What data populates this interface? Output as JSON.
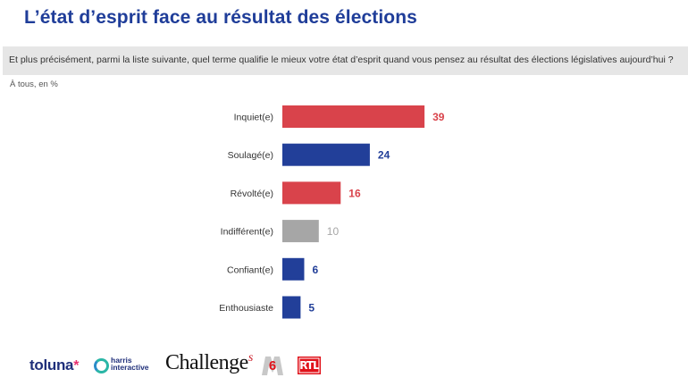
{
  "header": {
    "title": "L’état d’esprit face au résultat des élections",
    "question": "Et plus précisément, parmi la liste suivante, quel terme qualifie le mieux votre état d’esprit quand vous pensez au résultat des élections législatives aujourd’hui ?",
    "base": "À tous, en %"
  },
  "colors": {
    "title": "#1f3d99",
    "negative": "#d9434b",
    "positive": "#223f99",
    "neutral": "#a6a6a6",
    "neutral_label": "#a6a6a6"
  },
  "chart_data": {
    "type": "bar",
    "orientation": "horizontal",
    "title": "L’état d’esprit face au résultat des élections",
    "xlabel": "",
    "ylabel": "",
    "unit": "%",
    "xlim": [
      0,
      100
    ],
    "grid": false,
    "legend": "none",
    "categories": [
      "Inquiet(e)",
      "Soulagé(e)",
      "Révolté(e)",
      "Indifférent(e)",
      "Confiant(e)",
      "Enthousiaste"
    ],
    "values": [
      39,
      24,
      16,
      10,
      6,
      5
    ],
    "tone": [
      "negative",
      "positive",
      "negative",
      "neutral",
      "positive",
      "positive"
    ],
    "data_labels": [
      "39",
      "24",
      "16",
      "10",
      "6",
      "5"
    ]
  },
  "footer": {
    "logos": [
      {
        "name": "toluna",
        "text": "toluna",
        "mark": "*"
      },
      {
        "name": "harris-interactive",
        "text": "harris",
        "text2": "interactive"
      },
      {
        "name": "challenges",
        "text": "Challenge",
        "mark": "s"
      },
      {
        "name": "m6",
        "text": "6"
      },
      {
        "name": "rtl",
        "text": "RTL"
      }
    ]
  }
}
